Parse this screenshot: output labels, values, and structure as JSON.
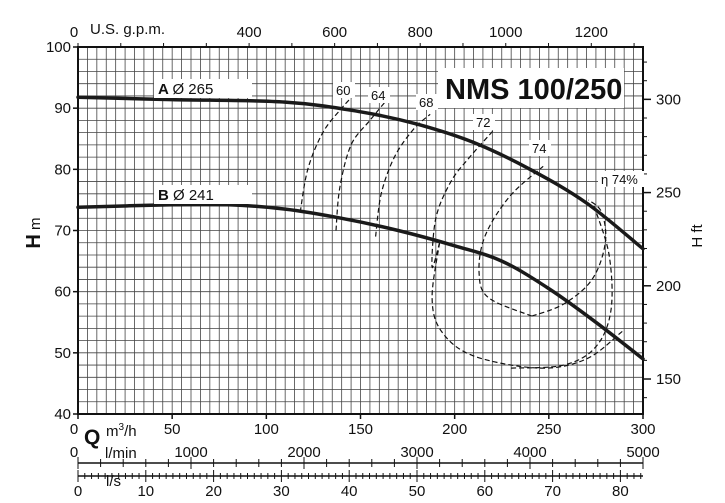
{
  "chart_data": {
    "type": "line",
    "title": "NMS 100/250",
    "xlabel": "Q",
    "ylabel_left": "H m",
    "ylabel_right": "H ft",
    "x_unit": "m³/h",
    "x_unit_main": "m",
    "x_unit_sup": "3",
    "x_unit_tail": "/h",
    "xlim": [
      0,
      300
    ],
    "ylim": [
      40,
      100
    ],
    "grid": true,
    "x_ticks": [
      0,
      50,
      100,
      150,
      200,
      250,
      300
    ],
    "y_ticks": [
      40,
      50,
      60,
      70,
      80,
      90,
      100
    ],
    "top_axis": {
      "label": "U.S. g.p.m.",
      "ticks": [
        0,
        400,
        600,
        800,
        1000,
        1200
      ]
    },
    "right_axis": {
      "label": "H ft",
      "ticks": [
        150,
        200,
        250,
        300
      ]
    },
    "lmin_axis": {
      "label": "l/min",
      "ticks": [
        0,
        1000,
        2000,
        3000,
        4000,
        5000
      ]
    },
    "ls_axis": {
      "label": "l/s",
      "ticks": [
        0,
        10,
        20,
        30,
        40,
        50,
        60,
        70,
        80
      ]
    },
    "series": [
      {
        "name": "A Ø 265",
        "letter": "A",
        "diameter": "Ø 265",
        "x": [
          0,
          50,
          110,
          150,
          180,
          210,
          240,
          270,
          300
        ],
        "y": [
          91.8,
          91.4,
          91.0,
          89.4,
          87.4,
          84.4,
          80.0,
          74.5,
          67.0
        ]
      },
      {
        "name": "B Ø 241",
        "letter": "B",
        "diameter": "Ø 241",
        "x": [
          0,
          50,
          80,
          110,
          140,
          170,
          200,
          225,
          250,
          275,
          300
        ],
        "y": [
          73.8,
          74.2,
          74.2,
          73.5,
          72.0,
          70.0,
          67.5,
          65.0,
          60.5,
          55.0,
          49.0
        ]
      }
    ],
    "efficiency_curves": [
      {
        "label": "60",
        "x": [
          118,
          122,
          130,
          140,
          146
        ],
        "y": [
          73,
          80,
          86,
          90,
          92
        ]
      },
      {
        "label": "64",
        "x": [
          137,
          139,
          145,
          155,
          163
        ],
        "y": [
          70,
          77,
          84,
          88,
          91
        ]
      },
      {
        "label": "68",
        "x": [
          158,
          161,
          168,
          178,
          187
        ],
        "y": [
          69,
          76,
          82,
          86.5,
          89
        ]
      },
      {
        "label": "72",
        "x": [
          192,
          188,
          190,
          198,
          208,
          221
        ],
        "y": [
          68,
          64,
          72,
          78,
          82,
          86.5
        ]
      },
      {
        "label": "74",
        "x": [
          241,
          218,
          213,
          216,
          229,
          247
        ],
        "y": [
          56,
          59,
          63,
          69,
          75.5,
          80.5
        ]
      },
      {
        "label": "η 74%",
        "x": [
          230,
          258,
          275,
          283,
          282,
          274
        ],
        "y": [
          47.5,
          48,
          51,
          57,
          66,
          74
        ]
      }
    ],
    "efficiency_loops": [
      {
        "x": [
          192,
          188,
          193,
          210,
          245,
          270,
          289
        ],
        "y": [
          68,
          59,
          53.5,
          49.5,
          47.5,
          49,
          53.5
        ]
      },
      {
        "x": [
          241,
          258,
          273,
          280,
          278,
          271
        ],
        "y": [
          56,
          58,
          62,
          68,
          73,
          75
        ]
      }
    ]
  }
}
